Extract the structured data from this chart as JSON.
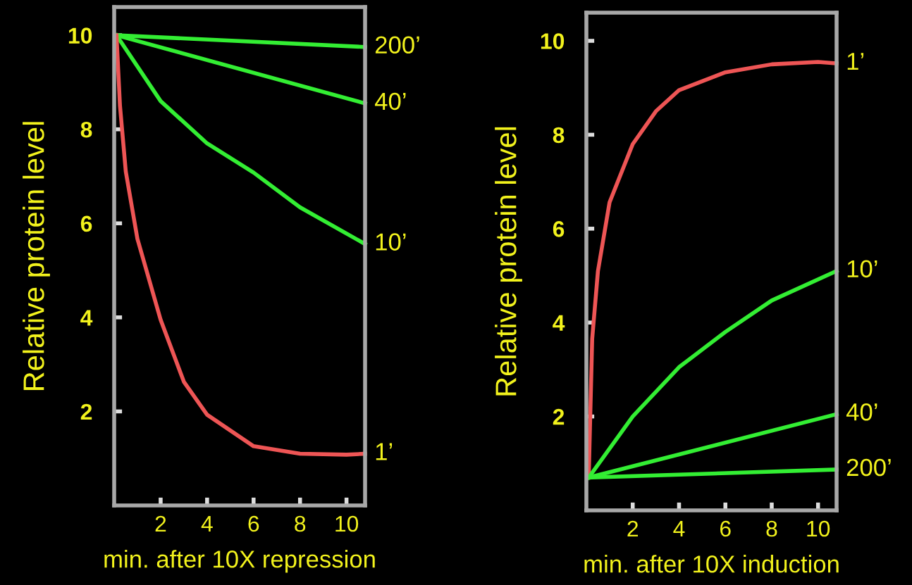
{
  "chart_data": [
    {
      "type": "line",
      "xlabel": "min. after 10X repression",
      "ylabel": "Relative protein level",
      "xlim": [
        0,
        10.8
      ],
      "ylim": [
        0,
        10.6
      ],
      "xticks": [
        2,
        4,
        6,
        8,
        10
      ],
      "yticks": [
        2,
        4,
        6,
        8,
        10
      ],
      "grid": false,
      "legend": false,
      "series": [
        {
          "name": "200’",
          "color": "#33ee33",
          "x": [
            0.1,
            10.8
          ],
          "values": [
            10,
            9.75
          ]
        },
        {
          "name": "40’",
          "color": "#33ee33",
          "x": [
            0.1,
            10.8
          ],
          "values": [
            10,
            8.55
          ]
        },
        {
          "name": "10’",
          "color": "#33ee33",
          "x": [
            0.1,
            2,
            4,
            6,
            8,
            10.8
          ],
          "values": [
            10,
            8.6,
            7.7,
            7.08,
            6.34,
            5.56
          ]
        },
        {
          "name": "1’",
          "color": "#ee5555",
          "x": [
            0.1,
            0.25,
            0.5,
            1,
            2,
            3,
            4,
            6,
            8,
            10,
            10.8
          ],
          "values": [
            10,
            8.5,
            7.1,
            5.67,
            3.95,
            2.63,
            1.93,
            1.26,
            1.1,
            1.08,
            1.1
          ]
        }
      ]
    },
    {
      "type": "line",
      "xlabel": "min. after 10X induction",
      "ylabel": "Relative protein level",
      "xlim": [
        0,
        10.8
      ],
      "ylim": [
        0,
        10.6
      ],
      "xticks": [
        2,
        4,
        6,
        8,
        10
      ],
      "yticks": [
        2,
        4,
        6,
        8,
        10
      ],
      "grid": false,
      "legend": false,
      "series": [
        {
          "name": "1’",
          "color": "#ee5555",
          "x": [
            0.1,
            0.25,
            0.5,
            1,
            2,
            3,
            4,
            6,
            8,
            10,
            10.8
          ],
          "values": [
            0.7,
            3.65,
            5.1,
            6.56,
            7.8,
            8.5,
            8.95,
            9.33,
            9.5,
            9.55,
            9.52
          ]
        },
        {
          "name": "10’",
          "color": "#33ee33",
          "x": [
            0.1,
            2,
            4,
            6,
            8,
            10.8
          ],
          "values": [
            0.7,
            2.0,
            3.05,
            3.8,
            4.47,
            5.1
          ]
        },
        {
          "name": "40’",
          "color": "#33ee33",
          "x": [
            0.1,
            10.8
          ],
          "values": [
            0.7,
            2.05
          ]
        },
        {
          "name": "200’",
          "color": "#33ee33",
          "x": [
            0.1,
            10.8
          ],
          "values": [
            0.7,
            0.87
          ]
        }
      ]
    }
  ]
}
